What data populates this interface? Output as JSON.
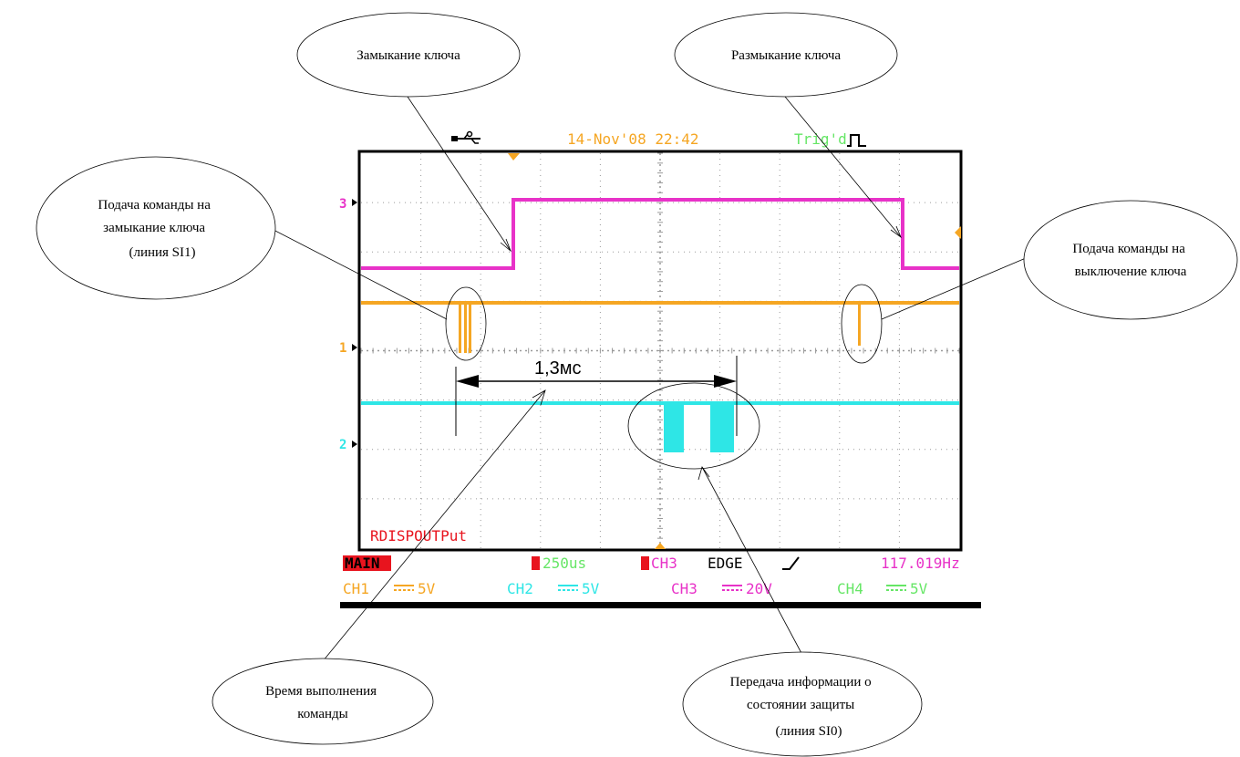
{
  "scope": {
    "date_time": "14-Nov'08 22:42",
    "trig_status": "Trig'd",
    "program_label": "RDISPOUTPut",
    "status_bar": {
      "main_label": "MAIN",
      "timebase": "250us",
      "trigger_source": "CH3",
      "trigger_mode": "EDGE",
      "frequency": "117.019Hz"
    },
    "channels": [
      {
        "label": "CH1",
        "scale": "5V",
        "color": "#F5A623"
      },
      {
        "label": "CH2",
        "scale": "5V",
        "color": "#2EE6E6"
      },
      {
        "label": "CH3",
        "scale": "20V",
        "color": "#E832C8"
      },
      {
        "label": "CH4",
        "scale": "5V",
        "color": "#66E666"
      }
    ],
    "channel_markers": [
      "3",
      "1",
      "2"
    ]
  },
  "measurement": {
    "label": "1,3мс"
  },
  "callouts": {
    "key_close": [
      "Замыкание ключа"
    ],
    "key_open": [
      "Размыкание ключа"
    ],
    "cmd_close": [
      "Подача команды на",
      "замыкание ключа",
      "(линия  SI1)"
    ],
    "cmd_off": [
      "Подача команды на",
      "выключение ключа"
    ],
    "exec_time": [
      "Время выполнения",
      "команды"
    ],
    "protection_info": [
      "Передача информации о",
      "состоянии защиты",
      "(линия  SI0)"
    ]
  },
  "colors": {
    "grid": "#9a9a9a",
    "ch1": "#F5A623",
    "ch2": "#2EE6E6",
    "ch3": "#E832C8",
    "status_red": "#E8141E",
    "status_green": "#66E666",
    "freq_magenta": "#E832C8"
  }
}
